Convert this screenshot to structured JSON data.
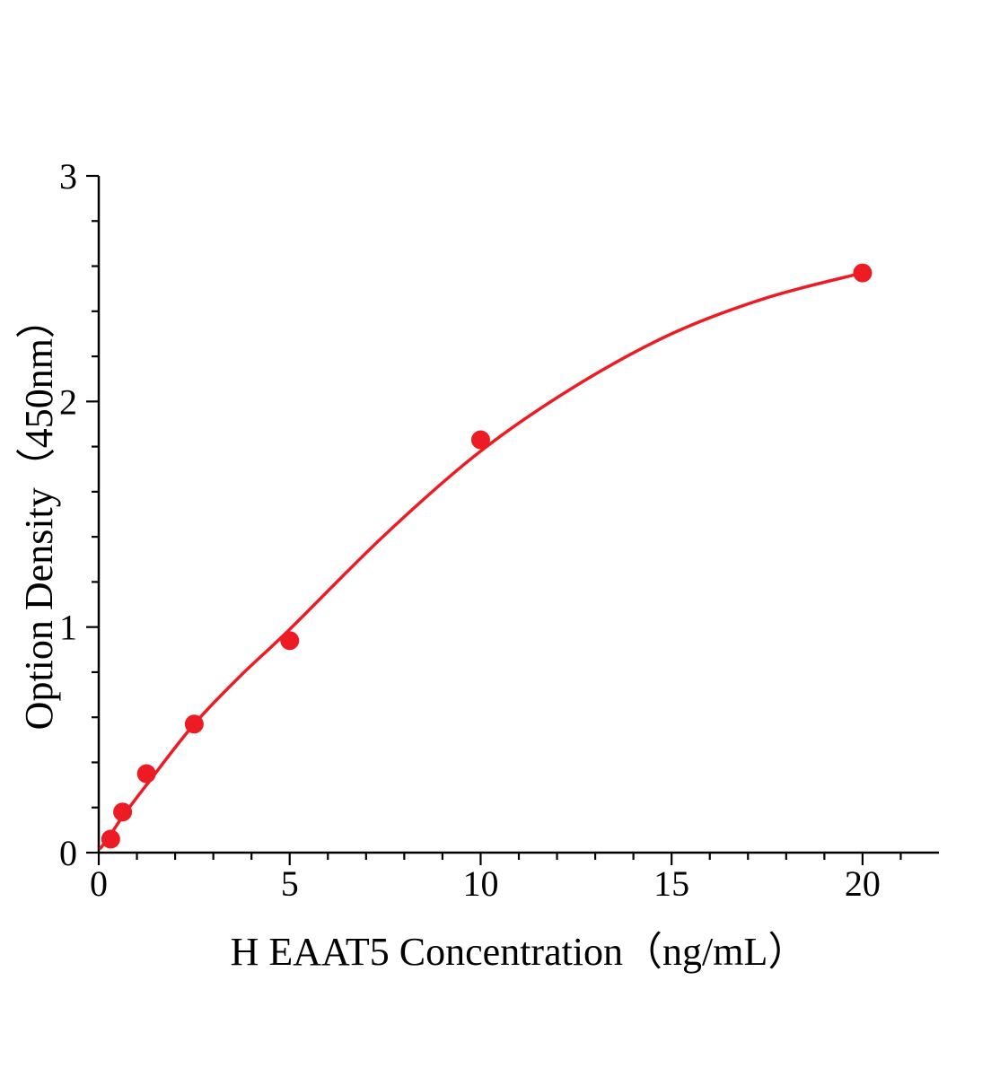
{
  "chart_data": {
    "type": "scatter",
    "title": "",
    "xlabel": "H EAAT5 Concentration（ng/mL）",
    "ylabel": "Option Density（450nm）",
    "xlim": [
      0,
      22
    ],
    "ylim": [
      0,
      3
    ],
    "x_major_ticks": [
      0,
      5,
      10,
      15,
      20
    ],
    "x_minor_step": 1,
    "y_major_ticks": [
      0,
      1,
      2,
      3
    ],
    "y_minor_step": 0.2,
    "grid": false,
    "legend": "none",
    "axis_color": "#000000",
    "point_color": "#ed1c24",
    "curve_color": "#ed1c24",
    "points": [
      [
        0.313,
        0.06
      ],
      [
        0.625,
        0.18
      ],
      [
        1.25,
        0.35
      ],
      [
        2.5,
        0.57
      ],
      [
        5,
        0.94
      ],
      [
        10,
        1.83
      ],
      [
        20,
        2.57
      ]
    ],
    "fit_curve": [
      [
        0.05,
        0.02
      ],
      [
        0.313,
        0.08
      ],
      [
        0.625,
        0.16
      ],
      [
        1.25,
        0.3
      ],
      [
        2.5,
        0.57
      ],
      [
        3.75,
        0.79
      ],
      [
        5,
        0.99
      ],
      [
        7.5,
        1.41
      ],
      [
        10,
        1.78
      ],
      [
        12.5,
        2.07
      ],
      [
        15,
        2.3
      ],
      [
        17.5,
        2.46
      ],
      [
        20,
        2.57
      ]
    ]
  }
}
